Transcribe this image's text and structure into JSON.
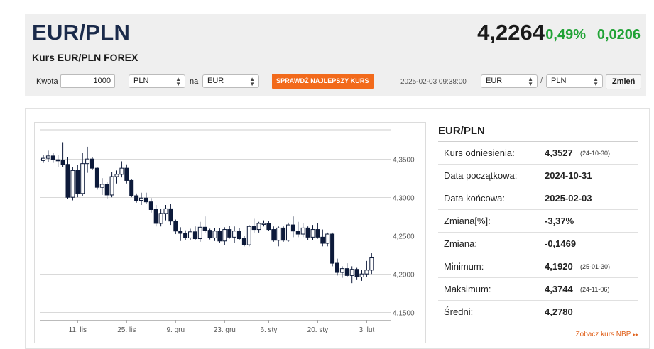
{
  "header": {
    "title": "EUR/PLN",
    "subtitle": "Kurs EUR/PLN FOREX",
    "rate": "4,2264",
    "change_pct": "0,49%",
    "change_abs": "0,0206",
    "change_color": "#21a336"
  },
  "converter": {
    "amount_label": "Kwota",
    "amount_value": "1000",
    "from_currency": "PLN",
    "to_label": "na",
    "to_currency": "EUR",
    "best_rate_button": "SPRAWDŹ NAJLEPSZY KURS",
    "button_color": "#f26a1b",
    "timestamp": "2025-02-03 09:38:00",
    "pair_base": "EUR",
    "pair_sep": "/",
    "pair_quote": "PLN",
    "change_button": "Zmień"
  },
  "stats": {
    "title": "EUR/PLN",
    "rows": [
      {
        "key": "Kurs odniesienia:",
        "value": "4,3527",
        "date": "(24-10-30)"
      },
      {
        "key": "Data początkowa:",
        "value": "2024-10-31",
        "date": ""
      },
      {
        "key": "Data końcowa:",
        "value": "2025-02-03",
        "date": ""
      },
      {
        "key": "Zmiana[%]:",
        "value": "-3,37%",
        "date": ""
      },
      {
        "key": "Zmiana:",
        "value": "-0,1469",
        "date": ""
      },
      {
        "key": "Minimum:",
        "value": "4,1920",
        "date": "(25-01-30)"
      },
      {
        "key": "Maksimum:",
        "value": "4,3744",
        "date": "(24-11-06)"
      },
      {
        "key": "Średni:",
        "value": "4,2780",
        "date": ""
      }
    ],
    "nbp_link": "Zobacz kurs NBP",
    "nbp_arrow": "▸▸"
  },
  "chart_data": {
    "type": "candlestick",
    "ylim": [
      4.14,
      4.39
    ],
    "y_ticks": [
      4.35,
      4.3,
      4.25,
      4.2,
      4.15
    ],
    "y_tick_labels": [
      "4,3500",
      "4,3000",
      "4,2500",
      "4,2000",
      "4,1500"
    ],
    "x_tick_labels": [
      "11. lis",
      "25. lis",
      "9. gru",
      "23. gru",
      "6. sty",
      "20. sty",
      "3. lut"
    ],
    "x_tick_index": [
      7,
      17,
      27,
      37,
      46,
      56,
      66
    ],
    "grid": true,
    "up_color": "#ffffff",
    "down_color": "#0d1a3a",
    "candles": [
      [
        4.348,
        4.355,
        4.345,
        4.351
      ],
      [
        4.351,
        4.361,
        4.346,
        4.354
      ],
      [
        4.354,
        4.358,
        4.345,
        4.349
      ],
      [
        4.349,
        4.355,
        4.34,
        4.348
      ],
      [
        4.348,
        4.372,
        4.34,
        4.343
      ],
      [
        4.343,
        4.352,
        4.298,
        4.3
      ],
      [
        4.3,
        4.34,
        4.296,
        4.335
      ],
      [
        4.335,
        4.342,
        4.3,
        4.305
      ],
      [
        4.305,
        4.358,
        4.302,
        4.344
      ],
      [
        4.344,
        4.366,
        4.332,
        4.35
      ],
      [
        4.35,
        4.352,
        4.336,
        4.338
      ],
      [
        4.338,
        4.34,
        4.31,
        4.313
      ],
      [
        4.313,
        4.325,
        4.303,
        4.317
      ],
      [
        4.317,
        4.32,
        4.298,
        4.303
      ],
      [
        4.303,
        4.333,
        4.3,
        4.327
      ],
      [
        4.327,
        4.335,
        4.318,
        4.33
      ],
      [
        4.33,
        4.347,
        4.326,
        4.338
      ],
      [
        4.338,
        4.343,
        4.318,
        4.322
      ],
      [
        4.322,
        4.324,
        4.3,
        4.302
      ],
      [
        4.302,
        4.305,
        4.293,
        4.296
      ],
      [
        4.296,
        4.306,
        4.29,
        4.299
      ],
      [
        4.299,
        4.306,
        4.292,
        4.294
      ],
      [
        4.294,
        4.299,
        4.28,
        4.284
      ],
      [
        4.284,
        4.29,
        4.262,
        4.266
      ],
      [
        4.266,
        4.285,
        4.262,
        4.279
      ],
      [
        4.279,
        4.29,
        4.27,
        4.285
      ],
      [
        4.285,
        4.291,
        4.264,
        4.269
      ],
      [
        4.269,
        4.271,
        4.252,
        4.256
      ],
      [
        4.256,
        4.261,
        4.243,
        4.253
      ],
      [
        4.253,
        4.257,
        4.244,
        4.247
      ],
      [
        4.247,
        4.259,
        4.244,
        4.255
      ],
      [
        4.255,
        4.262,
        4.244,
        4.246
      ],
      [
        4.246,
        4.268,
        4.242,
        4.261
      ],
      [
        4.261,
        4.275,
        4.254,
        4.257
      ],
      [
        4.257,
        4.259,
        4.245,
        4.247
      ],
      [
        4.247,
        4.26,
        4.243,
        4.256
      ],
      [
        4.256,
        4.26,
        4.24,
        4.243
      ],
      [
        4.243,
        4.261,
        4.238,
        4.258
      ],
      [
        4.258,
        4.263,
        4.246,
        4.248
      ],
      [
        4.248,
        4.262,
        4.24,
        4.256
      ],
      [
        4.256,
        4.26,
        4.244,
        4.246
      ],
      [
        4.246,
        4.25,
        4.236,
        4.238
      ],
      [
        4.238,
        4.264,
        4.236,
        4.262
      ],
      [
        4.262,
        4.272,
        4.254,
        4.258
      ],
      [
        4.258,
        4.268,
        4.254,
        4.266
      ],
      [
        4.266,
        4.27,
        4.262,
        4.266
      ],
      [
        4.266,
        4.269,
        4.256,
        4.258
      ],
      [
        4.258,
        4.262,
        4.242,
        4.244
      ],
      [
        4.244,
        4.262,
        4.236,
        4.26
      ],
      [
        4.26,
        4.262,
        4.242,
        4.244
      ],
      [
        4.244,
        4.267,
        4.242,
        4.264
      ],
      [
        4.264,
        4.275,
        4.248,
        4.256
      ],
      [
        4.256,
        4.268,
        4.248,
        4.252
      ],
      [
        4.252,
        4.266,
        4.248,
        4.26
      ],
      [
        4.26,
        4.262,
        4.244,
        4.248
      ],
      [
        4.248,
        4.264,
        4.244,
        4.258
      ],
      [
        4.258,
        4.266,
        4.246,
        4.248
      ],
      [
        4.248,
        4.258,
        4.236,
        4.24
      ],
      [
        4.24,
        4.254,
        4.236,
        4.252
      ],
      [
        4.252,
        4.254,
        4.21,
        4.214
      ],
      [
        4.214,
        4.22,
        4.198,
        4.202
      ],
      [
        4.202,
        4.21,
        4.195,
        4.207
      ],
      [
        4.207,
        4.214,
        4.196,
        4.198
      ],
      [
        4.198,
        4.21,
        4.188,
        4.206
      ],
      [
        4.206,
        4.208,
        4.192,
        4.196
      ],
      [
        4.196,
        4.205,
        4.191,
        4.2
      ],
      [
        4.2,
        4.217,
        4.196,
        4.205
      ],
      [
        4.205,
        4.227,
        4.2,
        4.221
      ]
    ]
  }
}
